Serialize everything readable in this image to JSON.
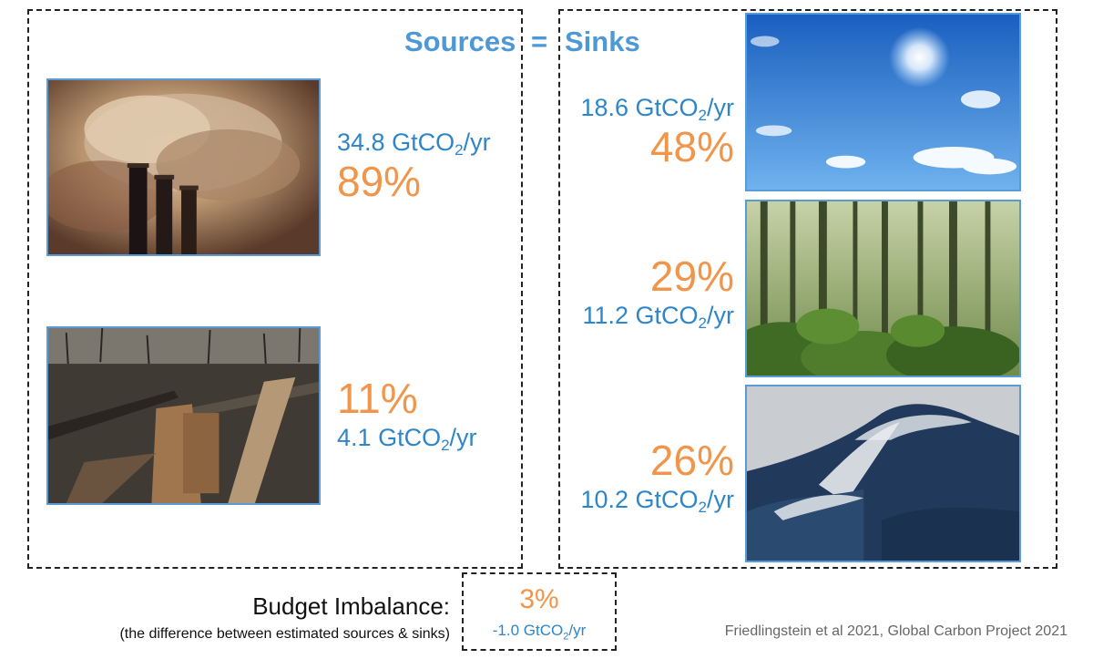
{
  "title": {
    "left": "Sources",
    "equals": "=",
    "right": "Sinks"
  },
  "unit": {
    "prefix": "GtCO",
    "subscript": "2",
    "suffix": "/yr"
  },
  "sources": [
    {
      "id": "fossil",
      "image": "smokestacks-photo",
      "flux": "34.8",
      "percent": "89%"
    },
    {
      "id": "land-use",
      "image": "deforestation-photo",
      "flux": "4.1",
      "percent": "11%"
    }
  ],
  "sinks": [
    {
      "id": "atmosphere",
      "image": "sky-photo",
      "flux": "18.6",
      "percent": "48%"
    },
    {
      "id": "land",
      "image": "forest-photo",
      "flux": "11.2",
      "percent": "29%"
    },
    {
      "id": "ocean",
      "image": "ocean-wave-photo",
      "flux": "10.2",
      "percent": "26%"
    }
  ],
  "budget_imbalance": {
    "label": "Budget Imbalance:",
    "note": "(the difference between estimated sources & sinks)",
    "percent": "3%",
    "flux": "-1.0"
  },
  "citation": "Friedlingstein et al 2021, Global Carbon Project 2021",
  "colors": {
    "accent_blue": "#2e86c9",
    "title_blue": "#4f98d6",
    "accent_orange": "#f0954a",
    "frame_blue": "#5b9bd5"
  }
}
